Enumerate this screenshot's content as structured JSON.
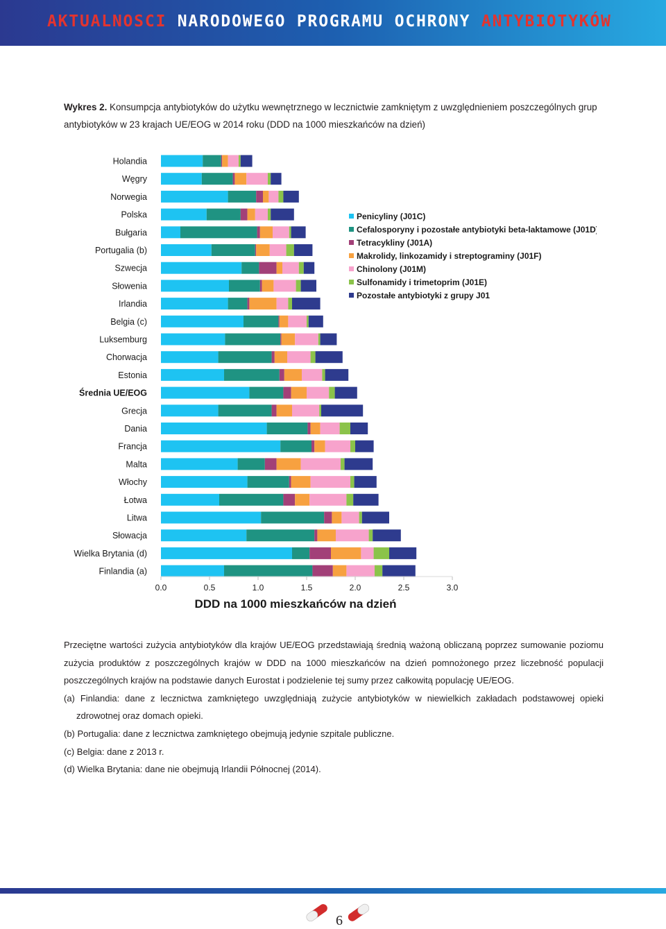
{
  "header": {
    "title_part1": "AKTUALNOSCI",
    "title_part2": "NARODOWEGO PROGRAMU OCHRONY",
    "title_part3": "ANTYBIOTYKÓW"
  },
  "caption": {
    "label": "Wykres 2.",
    "text": "Konsumpcja antybiotyków do użytku wewnętrznego w lecznictwie zamkniętym z uwzględnieniem poszczególnych grup antybiotyków w 23 krajach UE/EOG w 2014 roku (DDD na 1000 mieszkańców na dzień)"
  },
  "chart_data": {
    "type": "bar",
    "orientation": "horizontal",
    "stacked": true,
    "xlabel": "DDD na 1000 mieszkańców na dzień",
    "xlim": [
      0,
      3.0
    ],
    "xticks": [
      "0.0",
      "0.5",
      "1.0",
      "1.5",
      "2.0",
      "2.5",
      "3.0"
    ],
    "legend_position": "right",
    "categories": [
      "Holandia",
      "Węgry",
      "Norwegia",
      "Polska",
      "Bułgaria",
      "Portugalia (b)",
      "Szwecja",
      "Słowenia",
      "Irlandia",
      "Belgia (c)",
      "Luksemburg",
      "Chorwacja",
      "Estonia",
      "Średnia UE/EOG",
      "Grecja",
      "Dania",
      "Francja",
      "Malta",
      "Włochy",
      "Łotwa",
      "Litwa",
      "Słowacja",
      "Wielka Brytania (d)",
      "Finlandia (a)"
    ],
    "series": [
      {
        "name": "Penicyliny (J01C)",
        "color": "#1ec3f2",
        "values": [
          0.43,
          0.42,
          0.69,
          0.47,
          0.2,
          0.52,
          0.83,
          0.7,
          0.69,
          0.85,
          0.66,
          0.59,
          0.65,
          0.91,
          0.59,
          1.09,
          1.23,
          0.79,
          0.89,
          0.6,
          1.03,
          0.88,
          1.35,
          0.65
        ]
      },
      {
        "name": "Cefalosporyny i pozostałe antybiotyki beta-laktamowe (J01D)",
        "color": "#1f9382",
        "values": [
          0.19,
          0.32,
          0.29,
          0.35,
          0.79,
          0.45,
          0.18,
          0.32,
          0.2,
          0.36,
          0.57,
          0.55,
          0.57,
          0.35,
          0.55,
          0.42,
          0.32,
          0.28,
          0.43,
          0.66,
          0.65,
          0.7,
          0.18,
          0.91
        ]
      },
      {
        "name": "Tetracykliny (J01A)",
        "color": "#a24078",
        "values": [
          0.01,
          0.02,
          0.07,
          0.07,
          0.03,
          0.01,
          0.18,
          0.02,
          0.02,
          0.01,
          0.01,
          0.03,
          0.05,
          0.08,
          0.05,
          0.03,
          0.03,
          0.12,
          0.02,
          0.12,
          0.08,
          0.03,
          0.22,
          0.21
        ]
      },
      {
        "name": "Makrolidy, linkozamidy i streptograminy (J01F)",
        "color": "#f7a140",
        "values": [
          0.06,
          0.12,
          0.06,
          0.08,
          0.13,
          0.14,
          0.06,
          0.12,
          0.28,
          0.09,
          0.14,
          0.13,
          0.18,
          0.16,
          0.16,
          0.1,
          0.11,
          0.25,
          0.2,
          0.15,
          0.1,
          0.19,
          0.31,
          0.14
        ]
      },
      {
        "name": "Chinolony (J01M)",
        "color": "#f7a3cc",
        "values": [
          0.11,
          0.22,
          0.1,
          0.13,
          0.17,
          0.17,
          0.17,
          0.23,
          0.12,
          0.19,
          0.24,
          0.24,
          0.21,
          0.23,
          0.28,
          0.2,
          0.26,
          0.41,
          0.41,
          0.38,
          0.18,
          0.34,
          0.13,
          0.29
        ]
      },
      {
        "name": "Sulfonamidy i trimetoprim (J01E)",
        "color": "#8bc34a",
        "values": [
          0.02,
          0.03,
          0.05,
          0.03,
          0.02,
          0.08,
          0.05,
          0.05,
          0.04,
          0.02,
          0.02,
          0.05,
          0.03,
          0.06,
          0.02,
          0.11,
          0.05,
          0.04,
          0.04,
          0.07,
          0.03,
          0.04,
          0.16,
          0.08
        ]
      },
      {
        "name": "Pozostałe antybiotyki z grupy J01",
        "color": "#2e3b8e",
        "values": [
          0.12,
          0.11,
          0.16,
          0.24,
          0.15,
          0.19,
          0.11,
          0.16,
          0.29,
          0.15,
          0.17,
          0.28,
          0.24,
          0.23,
          0.43,
          0.18,
          0.19,
          0.29,
          0.23,
          0.26,
          0.28,
          0.29,
          0.28,
          0.34
        ]
      }
    ]
  },
  "notes": [
    "Przeciętne wartości zużycia antybiotyków dla krajów UE/EOG przedstawiają średnią ważoną obliczaną poprzez sumowanie poziomu zużycia produktów z poszczególnych krajów w DDD na 1000 mieszkańców na dzień pomnożonego przez liczebność populacji poszczególnych krajów na podstawie danych Eurostat i podzielenie tej sumy przez całkowitą populację UE/EOG.",
    "(a) Finlandia: dane z lecznictwa zamkniętego uwzględniają zużycie antybiotyków w niewielkich zakładach podstawowej opieki zdrowotnej oraz domach opieki.",
    "(b) Portugalia: dane z lecznictwa zamkniętego obejmują jedynie szpitale publiczne.",
    "(c) Belgia: dane z 2013 r.",
    "(d) Wielka Brytania: dane nie obejmują Irlandii Północnej (2014)."
  ],
  "footer": {
    "page_number": "6"
  }
}
